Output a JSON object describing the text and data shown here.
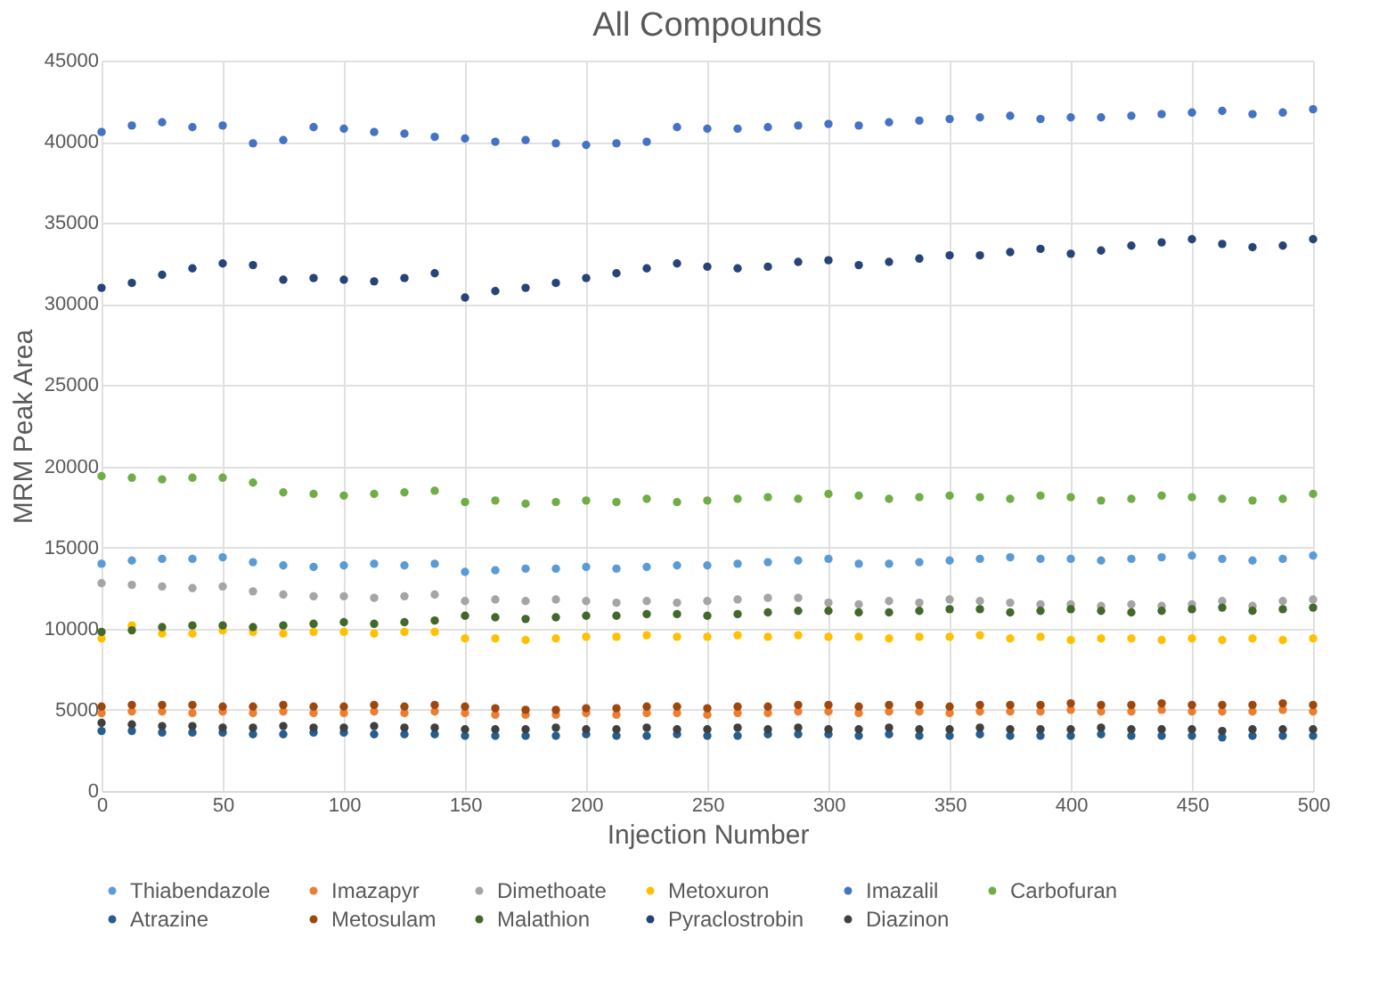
{
  "chart_data": {
    "type": "scatter",
    "title": "All Compounds",
    "xlabel": "Injection Number",
    "ylabel": "MRM Peak Area",
    "x": [
      0,
      12.5,
      25,
      37.5,
      50,
      62.5,
      75,
      87.5,
      100,
      112.5,
      125,
      137.5,
      150,
      162.5,
      175,
      187.5,
      200,
      212.5,
      225,
      237.5,
      250,
      262.5,
      275,
      287.5,
      300,
      312.5,
      325,
      337.5,
      350,
      362.5,
      375,
      387.5,
      400,
      412.5,
      425,
      437.5,
      450,
      462.5,
      475,
      487.5,
      500
    ],
    "xlim": [
      0,
      500
    ],
    "xticks": [
      0,
      50,
      100,
      150,
      200,
      250,
      300,
      350,
      400,
      450,
      500
    ],
    "ylim": [
      0,
      45000
    ],
    "yticks": [
      0,
      5000,
      10000,
      15000,
      20000,
      25000,
      30000,
      35000,
      40000,
      45000
    ],
    "grid": true,
    "legend": "bottom",
    "marker": "circle",
    "series": [
      {
        "name": "Thiabendazole",
        "color": "#5b9bd5",
        "values": [
          14000,
          14200,
          14300,
          14300,
          14400,
          14100,
          13900,
          13800,
          13900,
          14000,
          13900,
          14000,
          13500,
          13600,
          13700,
          13700,
          13800,
          13700,
          13800,
          13900,
          13900,
          14000,
          14100,
          14200,
          14300,
          14000,
          14000,
          14100,
          14200,
          14300,
          14400,
          14300,
          14300,
          14200,
          14300,
          14400,
          14500,
          14300,
          14200,
          14300,
          14500
        ]
      },
      {
        "name": "Imazapyr",
        "color": "#ed7d31",
        "values": [
          4800,
          4900,
          4900,
          4800,
          4900,
          4800,
          4900,
          4800,
          4800,
          4900,
          4800,
          4900,
          4800,
          4700,
          4700,
          4700,
          4800,
          4700,
          4800,
          4800,
          4700,
          4800,
          4800,
          4900,
          4900,
          4800,
          4900,
          4900,
          4800,
          4900,
          4900,
          4900,
          5000,
          4900,
          4900,
          5000,
          4900,
          4900,
          4900,
          5000,
          4900
        ]
      },
      {
        "name": "Dimethoate",
        "color": "#a5a5a5",
        "values": [
          12800,
          12700,
          12600,
          12500,
          12600,
          12300,
          12100,
          12000,
          12000,
          11900,
          12000,
          12100,
          11700,
          11800,
          11700,
          11800,
          11700,
          11600,
          11700,
          11600,
          11700,
          11800,
          11900,
          11900,
          11600,
          11500,
          11700,
          11600,
          11800,
          11700,
          11600,
          11500,
          11500,
          11400,
          11500,
          11400,
          11500,
          11700,
          11400,
          11700,
          11800
        ]
      },
      {
        "name": "Metoxuron",
        "color": "#ffc000",
        "values": [
          9400,
          10200,
          9700,
          9700,
          9900,
          9800,
          9700,
          9800,
          9800,
          9700,
          9800,
          9800,
          9400,
          9400,
          9300,
          9400,
          9500,
          9500,
          9600,
          9500,
          9500,
          9600,
          9500,
          9600,
          9500,
          9500,
          9400,
          9500,
          9500,
          9600,
          9400,
          9500,
          9300,
          9400,
          9400,
          9300,
          9400,
          9300,
          9400,
          9300,
          9400
        ]
      },
      {
        "name": "Imazalil",
        "color": "#4472c4",
        "values": [
          40600,
          41000,
          41200,
          40900,
          41000,
          39900,
          40100,
          40900,
          40800,
          40600,
          40500,
          40300,
          40200,
          40000,
          40100,
          39900,
          39800,
          39900,
          40000,
          40900,
          40800,
          40800,
          40900,
          41000,
          41100,
          41000,
          41200,
          41300,
          41400,
          41500,
          41600,
          41400,
          41500,
          41500,
          41600,
          41700,
          41800,
          41900,
          41700,
          41800,
          42000
        ]
      },
      {
        "name": "Carbofuran",
        "color": "#70ad47",
        "values": [
          19400,
          19300,
          19200,
          19300,
          19300,
          19000,
          18400,
          18300,
          18200,
          18300,
          18400,
          18500,
          17800,
          17900,
          17700,
          17800,
          17900,
          17800,
          18000,
          17800,
          17900,
          18000,
          18100,
          18000,
          18300,
          18200,
          18000,
          18100,
          18200,
          18100,
          18000,
          18200,
          18100,
          17900,
          18000,
          18200,
          18100,
          18000,
          17900,
          18000,
          18300
        ]
      },
      {
        "name": "Atrazine",
        "color": "#255e91",
        "values": [
          3700,
          3700,
          3600,
          3600,
          3600,
          3500,
          3500,
          3600,
          3600,
          3500,
          3500,
          3500,
          3400,
          3400,
          3400,
          3400,
          3500,
          3400,
          3400,
          3500,
          3400,
          3400,
          3500,
          3500,
          3500,
          3400,
          3500,
          3400,
          3400,
          3500,
          3400,
          3400,
          3400,
          3500,
          3400,
          3400,
          3400,
          3300,
          3400,
          3400,
          3400
        ]
      },
      {
        "name": "Metosulam",
        "color": "#9e480e",
        "values": [
          5200,
          5300,
          5300,
          5300,
          5200,
          5200,
          5300,
          5200,
          5200,
          5300,
          5200,
          5300,
          5200,
          5100,
          5000,
          5000,
          5100,
          5100,
          5200,
          5200,
          5100,
          5200,
          5200,
          5300,
          5300,
          5200,
          5300,
          5300,
          5200,
          5300,
          5300,
          5300,
          5400,
          5300,
          5300,
          5400,
          5300,
          5300,
          5300,
          5400,
          5300
        ]
      },
      {
        "name": "Malathion",
        "color": "#43682b",
        "values": [
          9800,
          9900,
          10100,
          10200,
          10200,
          10100,
          10200,
          10300,
          10400,
          10300,
          10400,
          10500,
          10800,
          10700,
          10600,
          10700,
          10800,
          10800,
          10900,
          10900,
          10800,
          10900,
          11000,
          11100,
          11100,
          11000,
          11000,
          11100,
          11200,
          11200,
          11000,
          11100,
          11200,
          11100,
          11000,
          11100,
          11200,
          11300,
          11100,
          11200,
          11300
        ]
      },
      {
        "name": "Pyraclostrobin",
        "color": "#264478",
        "values": [
          31000,
          31300,
          31800,
          32200,
          32500,
          32400,
          31500,
          31600,
          31500,
          31400,
          31600,
          31900,
          30400,
          30800,
          31000,
          31300,
          31600,
          31900,
          32200,
          32500,
          32300,
          32200,
          32300,
          32600,
          32700,
          32400,
          32600,
          32800,
          33000,
          33000,
          33200,
          33400,
          33100,
          33300,
          33600,
          33800,
          34000,
          33700,
          33500,
          33600,
          34000
        ]
      },
      {
        "name": "Diazinon",
        "color": "#404040",
        "values": [
          4200,
          4100,
          4000,
          4000,
          3900,
          3900,
          4000,
          3900,
          3900,
          4000,
          3900,
          3900,
          3800,
          3800,
          3800,
          3900,
          3800,
          3800,
          3900,
          3800,
          3800,
          3900,
          3800,
          3900,
          3800,
          3800,
          3900,
          3800,
          3800,
          3900,
          3800,
          3800,
          3800,
          3900,
          3800,
          3800,
          3800,
          3700,
          3800,
          3800,
          3800
        ]
      }
    ]
  }
}
